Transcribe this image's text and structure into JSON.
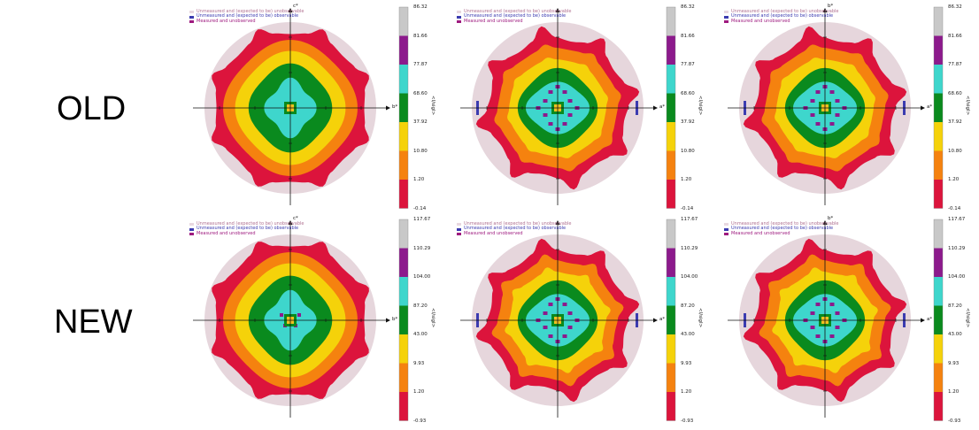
{
  "row_labels": {
    "old": "OLD",
    "new": "NEW"
  },
  "legend": {
    "unmeasured_unobservable": "Unmeasured and (expected to be) unobservable",
    "unmeasured_observable": "Unmeasured and (expected to be) observable",
    "measured_unobserved": "Measured and unobserved"
  },
  "legend_colors": {
    "unmeasured_unobservable": "#e8d8e0",
    "unmeasured_observable": "#3b3bb0",
    "measured_unobserved": "#9e1a7f"
  },
  "colorbar_title": "<I/sigI>",
  "colorbar_colors": [
    "#dc143c",
    "#f5820f",
    "#f5d20a",
    "#0a8a1e",
    "#3ed6cc",
    "#8c1a8c",
    "#c8c8c8"
  ],
  "zone_colors": {
    "outer": "#e6d6dc",
    "z0": "#dc143c",
    "z1": "#f5820f",
    "z2": "#f5d20a",
    "z3": "#0a8a1e",
    "z4": "#3ed6cc",
    "center": "#f0c020",
    "spots": "#8c1a8c"
  },
  "panels": [
    {
      "row": "old",
      "col": 0,
      "x_axis_label": "b*",
      "y_axis_label": "c*",
      "colorbar_ticks": [
        "86.32",
        "81.66",
        "77.87",
        "68.60",
        "37.92",
        "10.80",
        "1.20",
        "-0.14"
      ],
      "variant": "smooth"
    },
    {
      "row": "old",
      "col": 1,
      "x_axis_label": "a*",
      "y_axis_label": "",
      "colorbar_ticks": [
        "86.32",
        "81.66",
        "77.87",
        "68.60",
        "37.92",
        "10.80",
        "1.20",
        "-0.14"
      ],
      "variant": "star"
    },
    {
      "row": "old",
      "col": 2,
      "x_axis_label": "a*",
      "y_axis_label": "b*",
      "colorbar_ticks": [
        "86.32",
        "81.66",
        "77.87",
        "68.60",
        "37.92",
        "10.80",
        "1.20",
        "-0.14"
      ],
      "variant": "star"
    },
    {
      "row": "new",
      "col": 0,
      "x_axis_label": "b*",
      "y_axis_label": "c*",
      "colorbar_ticks": [
        "117.67",
        "110.29",
        "104.00",
        "87.20",
        "43.00",
        "9.93",
        "1.20",
        "-0.93"
      ],
      "variant": "smooth"
    },
    {
      "row": "new",
      "col": 1,
      "x_axis_label": "a*",
      "y_axis_label": "",
      "colorbar_ticks": [
        "117.67",
        "110.29",
        "104.00",
        "87.20",
        "43.00",
        "9.93",
        "1.20",
        "-0.93"
      ],
      "variant": "star"
    },
    {
      "row": "new",
      "col": 2,
      "x_axis_label": "a*",
      "y_axis_label": "b*",
      "colorbar_ticks": [
        "117.67",
        "110.29",
        "104.00",
        "87.20",
        "43.00",
        "9.93",
        "1.20",
        "-0.93"
      ],
      "variant": "star"
    }
  ]
}
